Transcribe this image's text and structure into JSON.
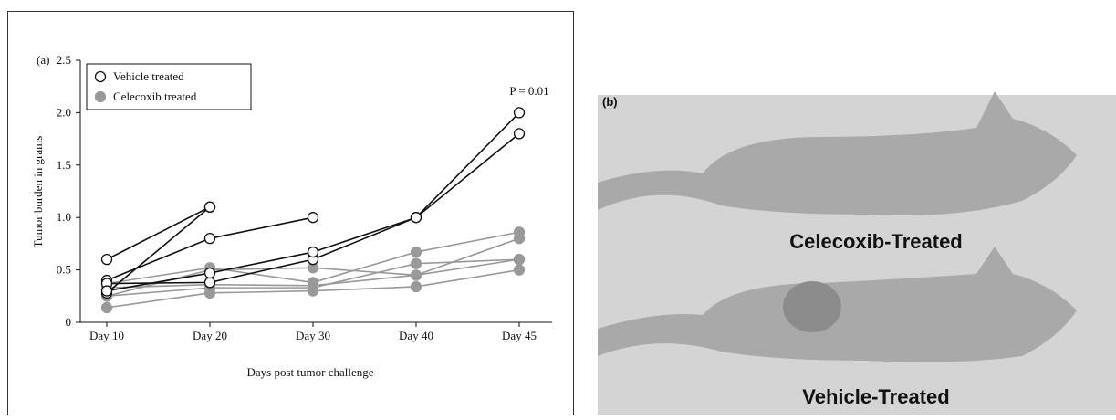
{
  "chart_data": {
    "type": "line",
    "panel_label": "(a)",
    "ylabel": "Tumor burden in grams",
    "xlabel": "Days post tumor challenge",
    "annotation": "P = 0.01",
    "categories": [
      "Day 10",
      "Day 20",
      "Day 30",
      "Day 40",
      "Day 45"
    ],
    "ylim": [
      0,
      2.5
    ],
    "yticks": [
      0,
      0.5,
      {
        "value": 1,
        "label": "1.0"
      },
      1.5,
      {
        "value": 2,
        "label": "2.0"
      },
      2.5
    ],
    "series": [
      {
        "name": "Vehicle treated",
        "color": "#111111",
        "marker_fill": "#ffffff",
        "lines": [
          [
            0.6,
            1.1,
            null,
            null,
            null
          ],
          [
            0.4,
            0.8,
            1.0,
            null,
            null
          ],
          [
            0.28,
            1.1,
            null,
            null,
            null
          ],
          [
            0.37,
            0.38,
            0.6,
            1.0,
            2.0
          ],
          [
            0.3,
            0.47,
            0.67,
            1.0,
            1.8
          ]
        ]
      },
      {
        "name": "Celecoxib treated",
        "color": "#999999",
        "marker_fill": "#999999",
        "lines": [
          [
            0.25,
            0.5,
            0.52,
            0.45,
            0.6
          ],
          [
            0.37,
            0.52,
            0.38,
            0.67,
            0.86
          ],
          [
            0.25,
            0.33,
            0.33,
            0.56,
            0.6
          ],
          [
            0.14,
            0.28,
            0.3,
            0.34,
            0.5
          ],
          [
            0.33,
            0.36,
            0.35,
            0.45,
            0.8
          ]
        ]
      }
    ]
  },
  "photo": {
    "panel_label": "(b)",
    "top_label": "Celecoxib-Treated",
    "bottom_label": "Vehicle-Treated"
  }
}
